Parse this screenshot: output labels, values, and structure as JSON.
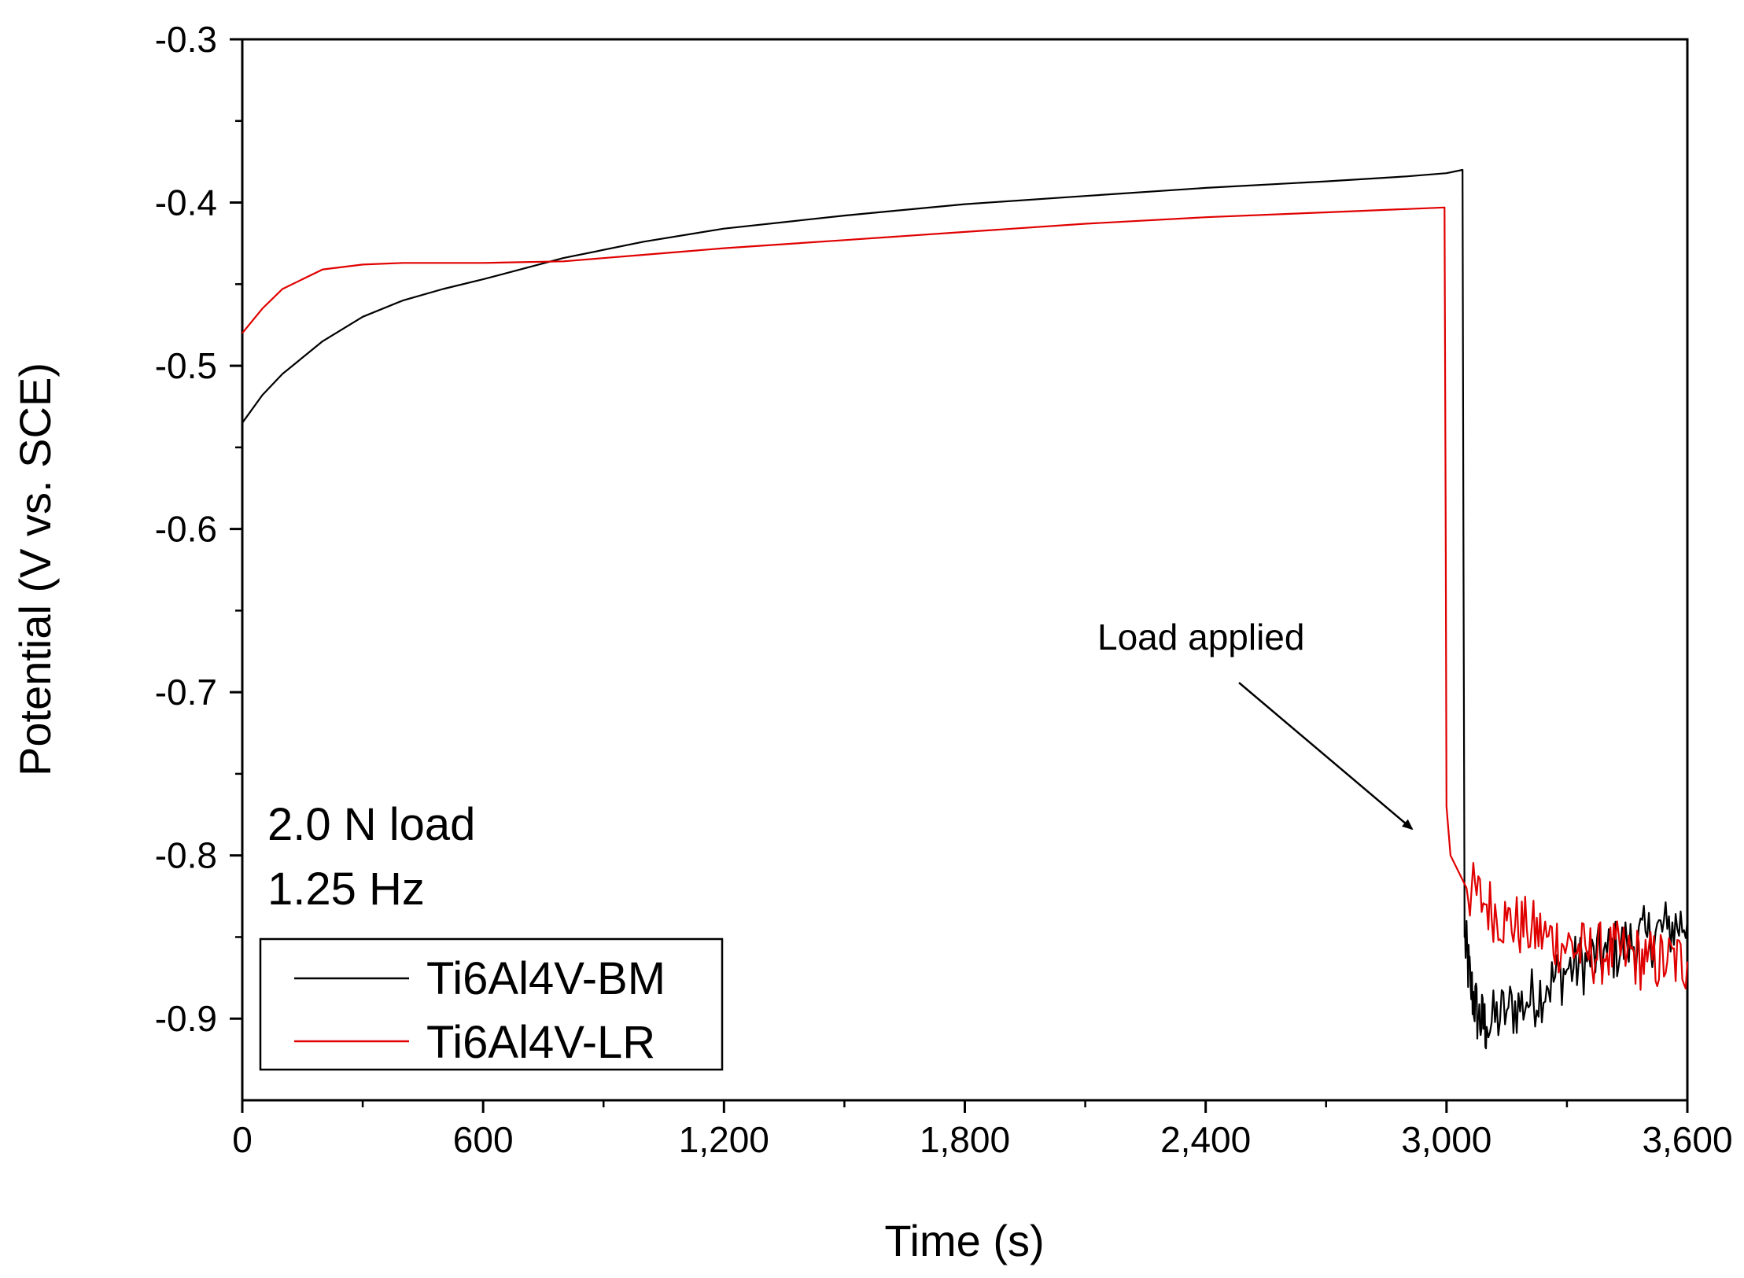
{
  "chart_data": {
    "type": "line",
    "title": "",
    "xlabel": "Time (s)",
    "ylabel": "Potential (V vs. SCE)",
    "xlim": [
      0,
      3600
    ],
    "ylim": [
      -0.95,
      -0.3
    ],
    "x_ticks": [
      0,
      600,
      1200,
      1800,
      2400,
      3000,
      3600
    ],
    "x_tick_labels": [
      "0",
      "600",
      "1,200",
      "1,800",
      "2,400",
      "3,000",
      "3,600"
    ],
    "y_ticks": [
      -0.3,
      -0.4,
      -0.5,
      -0.6,
      -0.7,
      -0.8,
      -0.9
    ],
    "y_tick_labels": [
      "-0.3",
      "-0.4",
      "-0.5",
      "-0.6",
      "-0.7",
      "-0.8",
      "-0.9"
    ],
    "conditions": [
      "2.0 N load",
      "1.25 Hz"
    ],
    "annotation": {
      "text": "Load applied",
      "points_to": {
        "x": 2930,
        "y": -0.805
      }
    },
    "legend_position": "bottom-left",
    "series": [
      {
        "name": "Ti6Al4V-BM",
        "color": "#000000",
        "x": [
          0,
          50,
          100,
          200,
          300,
          400,
          500,
          600,
          800,
          1000,
          1200,
          1500,
          1800,
          2100,
          2400,
          2700,
          2900,
          3000,
          3040,
          3042,
          3045,
          3060,
          3080,
          3100,
          3150,
          3200,
          3250,
          3300,
          3350,
          3400,
          3450,
          3500,
          3550,
          3600
        ],
        "y": [
          -0.535,
          -0.518,
          -0.505,
          -0.485,
          -0.47,
          -0.46,
          -0.453,
          -0.447,
          -0.434,
          -0.424,
          -0.416,
          -0.408,
          -0.401,
          -0.396,
          -0.391,
          -0.387,
          -0.384,
          -0.382,
          -0.38,
          -0.6,
          -0.85,
          -0.88,
          -0.9,
          -0.905,
          -0.895,
          -0.89,
          -0.88,
          -0.87,
          -0.865,
          -0.86,
          -0.855,
          -0.85,
          -0.845,
          -0.84
        ]
      },
      {
        "name": "Ti6Al4V-LR",
        "color": "#e00000",
        "x": [
          0,
          50,
          100,
          200,
          300,
          400,
          600,
          800,
          1000,
          1200,
          1500,
          1800,
          2100,
          2400,
          2700,
          2900,
          2995,
          2998,
          3000,
          3010,
          3030,
          3050,
          3100,
          3150,
          3200,
          3250,
          3300,
          3350,
          3400,
          3450,
          3500,
          3550,
          3600
        ],
        "y": [
          -0.48,
          -0.465,
          -0.453,
          -0.441,
          -0.438,
          -0.437,
          -0.437,
          -0.436,
          -0.432,
          -0.428,
          -0.423,
          -0.418,
          -0.413,
          -0.409,
          -0.406,
          -0.404,
          -0.403,
          -0.6,
          -0.77,
          -0.8,
          -0.81,
          -0.82,
          -0.83,
          -0.84,
          -0.845,
          -0.85,
          -0.855,
          -0.86,
          -0.86,
          -0.86,
          -0.865,
          -0.865,
          -0.865
        ]
      }
    ]
  }
}
